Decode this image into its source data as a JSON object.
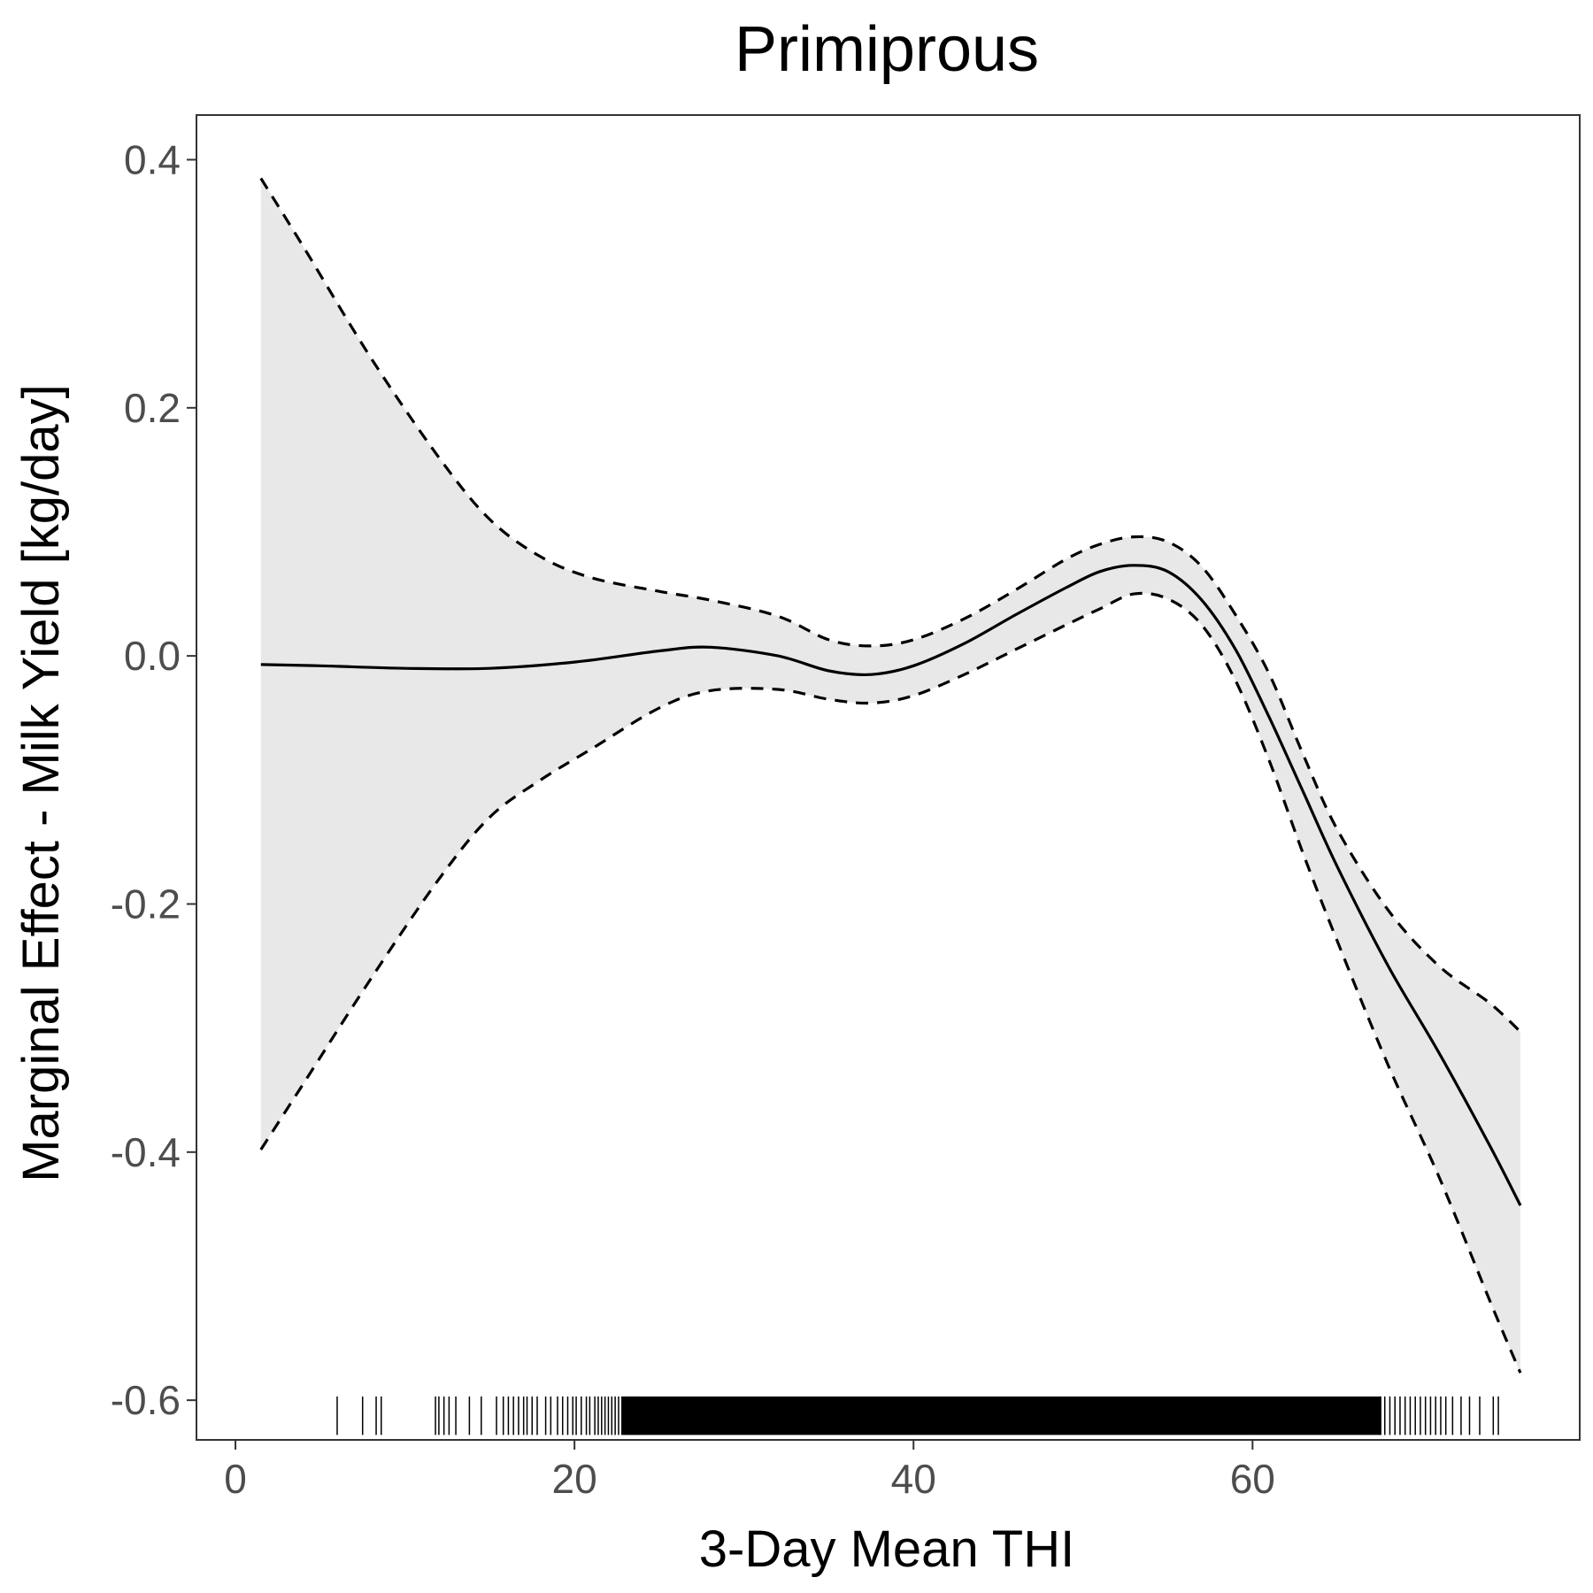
{
  "chart_data": {
    "type": "line",
    "title": "Primiprous",
    "xlabel": "3-Day Mean THI",
    "ylabel": "Marginal Effect - Milk Yield [kg/day]",
    "xlim": [
      -2.3,
      79.3
    ],
    "ylim": [
      -0.632,
      0.436
    ],
    "x_ticks": [
      0,
      20,
      40,
      60
    ],
    "x_tick_labels": [
      "0",
      "20",
      "40",
      "60"
    ],
    "y_ticks": [
      0.4,
      0.2,
      0.0,
      -0.2,
      -0.4,
      -0.6
    ],
    "y_tick_labels": [
      "0.4",
      "0.2",
      "0.0",
      "-0.2",
      "-0.4",
      "-0.6"
    ],
    "grid": false,
    "legend": "none",
    "colors": {
      "line": "#000000",
      "ribbon": "#e8e8e8",
      "panel_border": "#333333",
      "tick_label": "#4d4d4d"
    },
    "series": [
      {
        "role": "estimate",
        "style": "solid",
        "x": [
          1.5,
          5,
          10,
          15,
          20,
          25,
          28,
          32,
          35,
          37.5,
          40,
          43,
          46,
          49,
          51,
          53,
          55,
          57,
          59,
          61,
          63,
          65,
          68,
          71,
          74,
          75.8
        ],
        "y": [
          -0.007,
          -0.008,
          -0.01,
          -0.01,
          -0.005,
          0.004,
          0.007,
          0.0,
          -0.012,
          -0.015,
          -0.008,
          0.01,
          0.033,
          0.055,
          0.068,
          0.073,
          0.068,
          0.045,
          0.005,
          -0.05,
          -0.11,
          -0.17,
          -0.25,
          -0.32,
          -0.395,
          -0.443
        ]
      },
      {
        "role": "upper-ci",
        "style": "dashed",
        "x": [
          1.5,
          4,
          8,
          12,
          15,
          18,
          21,
          25,
          28,
          32,
          35,
          37.5,
          40,
          43,
          46,
          49,
          51,
          53,
          55,
          57,
          59,
          61,
          63,
          65,
          68,
          71,
          74,
          75.8
        ],
        "y": [
          0.385,
          0.33,
          0.24,
          0.16,
          0.11,
          0.08,
          0.063,
          0.052,
          0.045,
          0.032,
          0.013,
          0.008,
          0.013,
          0.03,
          0.053,
          0.078,
          0.09,
          0.096,
          0.092,
          0.072,
          0.033,
          -0.015,
          -0.08,
          -0.14,
          -0.205,
          -0.25,
          -0.28,
          -0.303
        ]
      },
      {
        "role": "lower-ci",
        "style": "dashed",
        "x": [
          1.5,
          4,
          8,
          12,
          15,
          18,
          21,
          25,
          28,
          32,
          35,
          37.5,
          40,
          43,
          46,
          49,
          51,
          53,
          55,
          57,
          59,
          61,
          63,
          65,
          68,
          71,
          74,
          75.8
        ],
        "y": [
          -0.398,
          -0.345,
          -0.26,
          -0.18,
          -0.13,
          -0.1,
          -0.075,
          -0.042,
          -0.028,
          -0.027,
          -0.035,
          -0.038,
          -0.032,
          -0.015,
          0.005,
          0.025,
          0.038,
          0.05,
          0.046,
          0.025,
          -0.02,
          -0.085,
          -0.16,
          -0.23,
          -0.33,
          -0.42,
          -0.52,
          -0.578
        ]
      }
    ],
    "rug_x": [
      6.0,
      7.5,
      8.3,
      8.6,
      11.8,
      12.0,
      12.3,
      12.6,
      13.0,
      13.8,
      14.5,
      15.4,
      15.8,
      16.1,
      16.4,
      16.7,
      17.0,
      17.2,
      17.5,
      17.8,
      18.3,
      18.6,
      19.0,
      19.3,
      19.6,
      19.9,
      20.1,
      20.4,
      20.7,
      20.9,
      21.2,
      21.4,
      21.6,
      21.8,
      22.0,
      22.2,
      22.4,
      22.6,
      22.8,
      23.0,
      23.2,
      23.4,
      23.6,
      23.8,
      24.0,
      67.5,
      67.8,
      68.1,
      68.4,
      68.7,
      69.0,
      69.3,
      69.6,
      69.9,
      70.2,
      70.5,
      70.8,
      71.1,
      71.4,
      71.8,
      72.3,
      72.8,
      73.4,
      74.2,
      74.5
    ]
  }
}
